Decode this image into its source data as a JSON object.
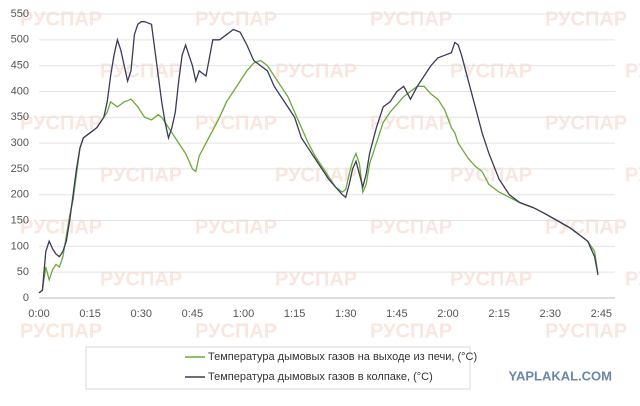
{
  "chart_data": {
    "type": "line",
    "watermark": "РУСПАР",
    "site": "YAPLAKAL.COM",
    "x": [
      0,
      1,
      2,
      3,
      4,
      5,
      6,
      7,
      8,
      9,
      10,
      11,
      12,
      13,
      15,
      17,
      19,
      20,
      21,
      22,
      23,
      24,
      25,
      26,
      27,
      28,
      29,
      30,
      31,
      33,
      35,
      36,
      37,
      38,
      39,
      40,
      41,
      42,
      43,
      45,
      46,
      47,
      49,
      51,
      53,
      55,
      57,
      59,
      61,
      63,
      65,
      67,
      69,
      71,
      73,
      75,
      77,
      79,
      81,
      83,
      85,
      87,
      89,
      90,
      91,
      92,
      93,
      94,
      95,
      96,
      97,
      99,
      101,
      103,
      105,
      107,
      109,
      111,
      113,
      115,
      117,
      119,
      121,
      122,
      123,
      124,
      126,
      128,
      130,
      132,
      135,
      138,
      141,
      145,
      148,
      152,
      156,
      159,
      161,
      163,
      164
    ],
    "series": [
      {
        "name": "Температура дымовых газов на выходе из печи, (°C)",
        "color": "#6aaa3a",
        "values": [
          10,
          15,
          60,
          35,
          55,
          65,
          60,
          80,
          120,
          160,
          190,
          240,
          290,
          310,
          320,
          330,
          350,
          360,
          380,
          375,
          370,
          375,
          380,
          382,
          385,
          378,
          370,
          360,
          350,
          345,
          355,
          350,
          340,
          330,
          320,
          310,
          300,
          290,
          280,
          250,
          245,
          275,
          300,
          325,
          350,
          380,
          400,
          420,
          440,
          455,
          460,
          450,
          430,
          410,
          390,
          360,
          330,
          300,
          275,
          255,
          235,
          215,
          205,
          210,
          240,
          265,
          280,
          260,
          205,
          220,
          260,
          300,
          340,
          360,
          375,
          390,
          400,
          410,
          410,
          395,
          385,
          365,
          330,
          320,
          300,
          290,
          270,
          255,
          245,
          220,
          205,
          195,
          185,
          175,
          165,
          150,
          135,
          120,
          110,
          90,
          45
        ]
      },
      {
        "name": "Температура дымовых газов в колпаке, (°C)",
        "color": "#3a3a5a",
        "values": [
          10,
          15,
          90,
          110,
          95,
          85,
          80,
          90,
          110,
          150,
          200,
          250,
          290,
          310,
          320,
          330,
          350,
          380,
          430,
          470,
          500,
          480,
          450,
          420,
          440,
          510,
          530,
          535,
          535,
          530,
          430,
          380,
          340,
          310,
          330,
          360,
          420,
          470,
          490,
          450,
          420,
          440,
          430,
          500,
          500,
          510,
          520,
          515,
          490,
          460,
          450,
          440,
          410,
          390,
          370,
          350,
          310,
          290,
          270,
          250,
          230,
          215,
          200,
          195,
          220,
          250,
          265,
          240,
          215,
          240,
          280,
          330,
          370,
          380,
          400,
          410,
          385,
          410,
          430,
          450,
          465,
          470,
          475,
          495,
          490,
          470,
          420,
          370,
          320,
          280,
          230,
          200,
          185,
          175,
          165,
          150,
          135,
          120,
          110,
          80,
          45
        ]
      }
    ],
    "xlim": [
      0,
      169
    ],
    "xticks": [
      {
        "value": 0,
        "label": "0:00"
      },
      {
        "value": 15,
        "label": "0:15"
      },
      {
        "value": 30,
        "label": "0:30"
      },
      {
        "value": 45,
        "label": "0:45"
      },
      {
        "value": 60,
        "label": "1:00"
      },
      {
        "value": 75,
        "label": "1:15"
      },
      {
        "value": 90,
        "label": "1:30"
      },
      {
        "value": 105,
        "label": "1:45"
      },
      {
        "value": 120,
        "label": "2:00"
      },
      {
        "value": 135,
        "label": "2:15"
      },
      {
        "value": 150,
        "label": "2:30"
      },
      {
        "value": 165,
        "label": "2:45"
      }
    ],
    "ylim": [
      0,
      550
    ],
    "yticks": [
      0,
      50,
      100,
      150,
      200,
      250,
      300,
      350,
      400,
      450,
      500,
      550
    ],
    "grid": true
  }
}
